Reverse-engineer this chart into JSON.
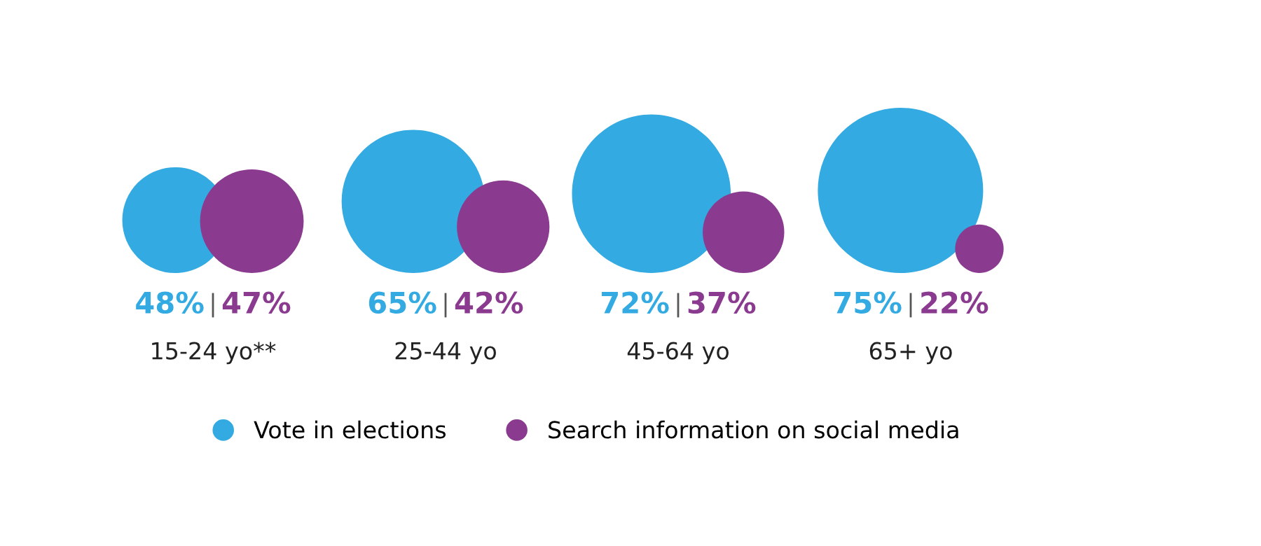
{
  "chart_data": {
    "type": "other",
    "categories": [
      "15-24 yo**",
      "25-44 yo",
      "45-64 yo",
      "65+ yo"
    ],
    "series": [
      {
        "name": "Vote in elections",
        "color": "#33aae1",
        "values": [
          48,
          65,
          72,
          75
        ],
        "value_labels": [
          "48%",
          "65%",
          "72%",
          "75%"
        ]
      },
      {
        "name": "Search information on social media",
        "color": "#8a3b8f",
        "values": [
          47,
          42,
          37,
          22
        ],
        "value_labels": [
          "47%",
          "42%",
          "37%",
          "22%"
        ]
      }
    ],
    "legend": "bottom"
  }
}
